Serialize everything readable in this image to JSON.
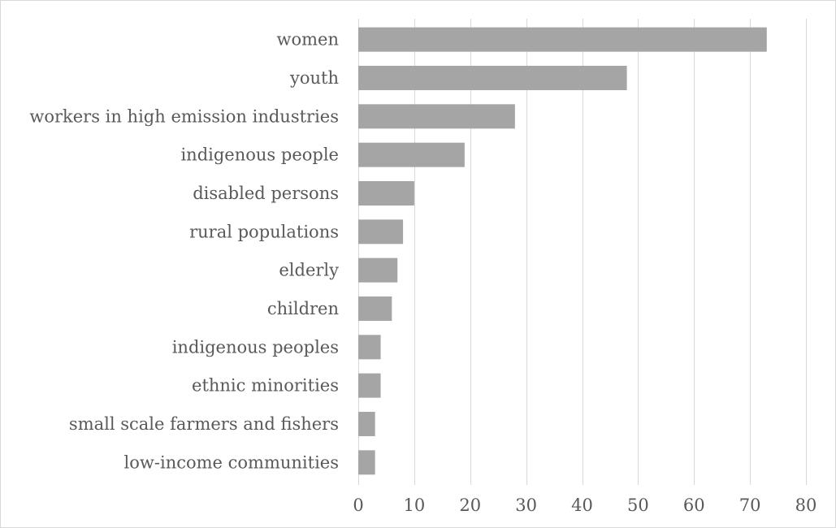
{
  "chart_data": {
    "type": "bar",
    "orientation": "horizontal",
    "categories": [
      "women",
      "youth",
      "workers in high emission industries",
      "indigenous people",
      "disabled persons",
      "rural populations",
      "elderly",
      "children",
      "indigenous peoples",
      "ethnic minorities",
      "small scale farmers and fishers",
      "low-income communities"
    ],
    "values": [
      73,
      48,
      28,
      19,
      10,
      8,
      7,
      6,
      4,
      4,
      3,
      3
    ],
    "xlim": [
      0,
      80
    ],
    "xticks": [
      0,
      10,
      20,
      30,
      40,
      50,
      60,
      70,
      80
    ],
    "grid": true,
    "legend": "none",
    "colors": {
      "bar": "#a5a5a5",
      "grid": "#d9d9d9",
      "text": "#595959"
    }
  }
}
